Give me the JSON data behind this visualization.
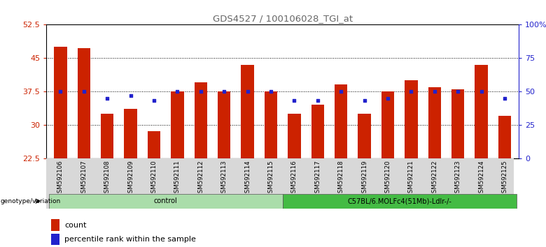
{
  "title": "GDS4527 / 100106028_TGI_at",
  "samples": [
    "GSM592106",
    "GSM592107",
    "GSM592108",
    "GSM592109",
    "GSM592110",
    "GSM592111",
    "GSM592112",
    "GSM592113",
    "GSM592114",
    "GSM592115",
    "GSM592116",
    "GSM592117",
    "GSM592118",
    "GSM592119",
    "GSM592120",
    "GSM592121",
    "GSM592122",
    "GSM592123",
    "GSM592124",
    "GSM592125"
  ],
  "count_values": [
    47.5,
    47.3,
    32.5,
    33.5,
    28.5,
    37.5,
    39.5,
    37.5,
    43.5,
    37.5,
    32.5,
    34.5,
    39.0,
    32.5,
    37.5,
    40.0,
    38.5,
    38.0,
    43.5,
    32.0
  ],
  "percentile_pct": [
    50,
    50,
    45,
    47,
    43,
    50,
    50,
    50,
    50,
    50,
    43,
    43,
    50,
    43,
    45,
    50,
    50,
    50,
    50,
    45
  ],
  "groups": [
    {
      "label": "control",
      "start": 0,
      "end": 10,
      "color": "#aaddaa"
    },
    {
      "label": "C57BL/6.MOLFc4(51Mb)-Ldlr-/-",
      "start": 10,
      "end": 20,
      "color": "#44bb44"
    }
  ],
  "ylim_left": [
    22.5,
    52.5
  ],
  "ylim_right": [
    0,
    100
  ],
  "yticks_left": [
    22.5,
    30.0,
    37.5,
    45.0,
    52.5
  ],
  "yticks_right": [
    0,
    25,
    50,
    75,
    100
  ],
  "bar_color": "#cc2200",
  "dot_color": "#2222cc",
  "title_color": "#666666",
  "left_tick_color": "#cc2200",
  "right_tick_color": "#2222cc",
  "genotype_label": "genotype/variation",
  "legend_count": "count",
  "legend_percentile": "percentile rank within the sample",
  "background_color": "#ffffff"
}
